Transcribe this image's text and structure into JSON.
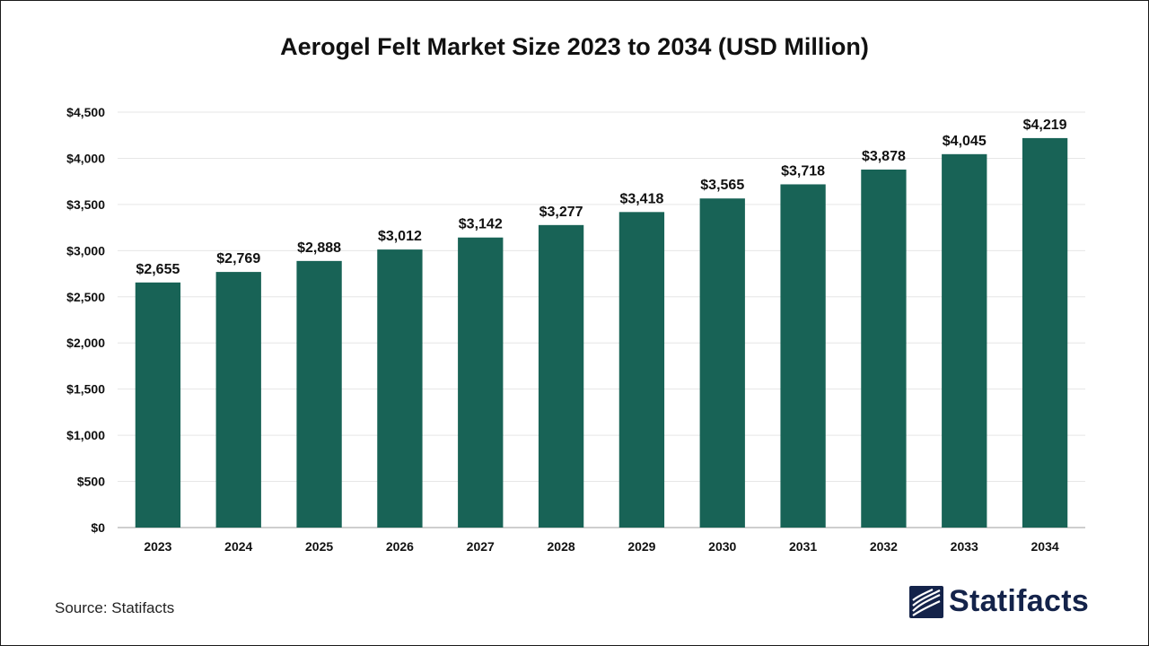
{
  "title": "Aerogel Felt Market Size 2023 to 2034 (USD Million)",
  "source": "Source: Statifacts",
  "brand": {
    "name": "Statifacts",
    "logo_icon": "statifacts-logo-icon",
    "color": "#14234a"
  },
  "colors": {
    "bar": "#186356",
    "grid": "#e6e6e6",
    "axis": "#bdbdbd",
    "text": "#111111"
  },
  "chart_data": {
    "type": "bar",
    "title": "Aerogel Felt Market Size 2023 to 2034 (USD Million)",
    "xlabel": "",
    "ylabel": "",
    "categories": [
      "2023",
      "2024",
      "2025",
      "2026",
      "2027",
      "2028",
      "2029",
      "2030",
      "2031",
      "2032",
      "2033",
      "2034"
    ],
    "values": [
      2655,
      2769,
      2888,
      3012,
      3142,
      3277,
      3418,
      3565,
      3718,
      3878,
      4045,
      4219
    ],
    "data_labels": [
      "$2,655",
      "$2,769",
      "$2,888",
      "$3,012",
      "$3,142",
      "$3,277",
      "$3,418",
      "$3,565",
      "$3,718",
      "$3,878",
      "$4,045",
      "$4,219"
    ],
    "ylim": [
      0,
      4500
    ],
    "yticks": [
      0,
      500,
      1000,
      1500,
      2000,
      2500,
      3000,
      3500,
      4000,
      4500
    ],
    "ytick_labels": [
      "$0",
      "$500",
      "$1,000",
      "$1,500",
      "$2,000",
      "$2,500",
      "$3,000",
      "$3,500",
      "$4,000",
      "$4,500"
    ],
    "grid": true,
    "legend": "none"
  }
}
